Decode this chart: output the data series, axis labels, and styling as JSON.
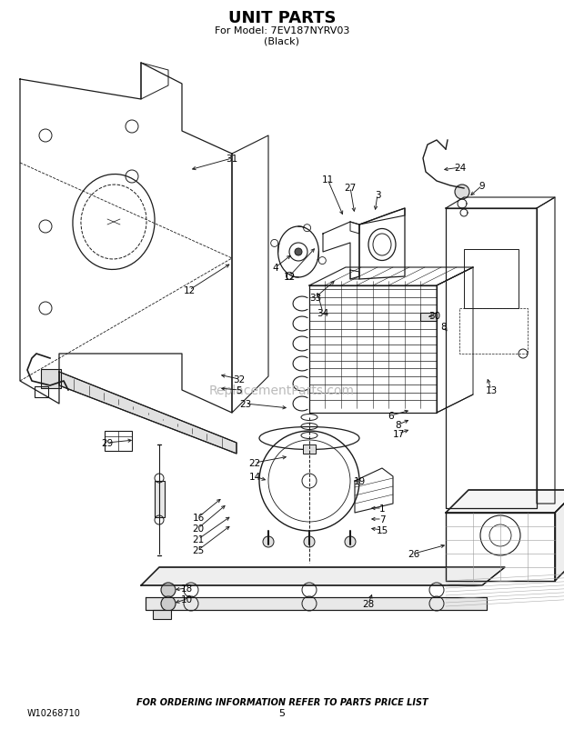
{
  "title_line1": "UNIT PARTS",
  "title_line2": "For Model: 7EV187NYRV03",
  "title_line3": "(Black)",
  "footer_text": "FOR ORDERING INFORMATION REFER TO PARTS PRICE LIST",
  "part_number": "W10268710",
  "page_number": "5",
  "watermark": "ReplacementParts.com",
  "bg_color": "#ffffff",
  "line_color": "#1a1a1a",
  "text_color": "#000000",
  "fig_w": 6.2,
  "fig_h": 8.03,
  "dpi": 100
}
